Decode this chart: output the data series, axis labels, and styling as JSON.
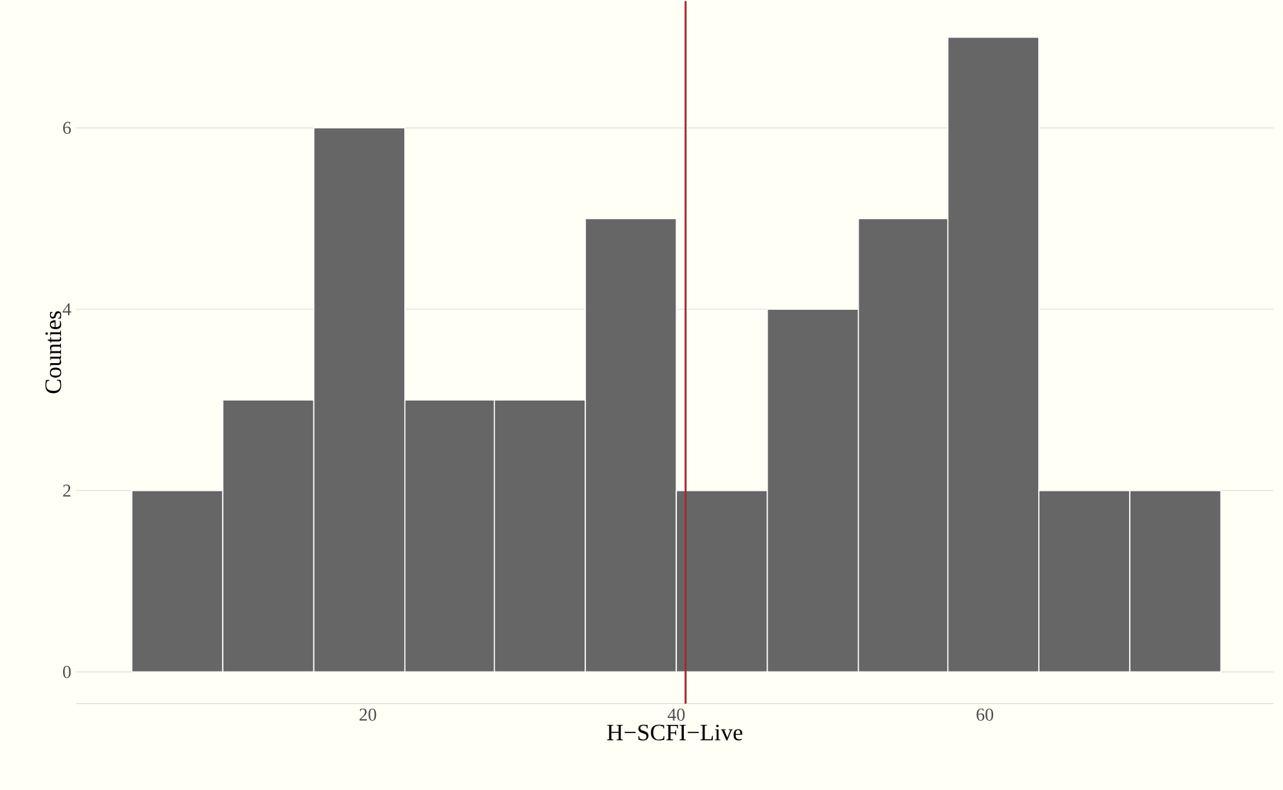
{
  "chart_data": {
    "type": "histogram",
    "xlabel": "H−SCFI−Live",
    "ylabel": "Counties",
    "bins": [
      4.7,
      10.6,
      16.5,
      22.4,
      28.2,
      34.1,
      40.0,
      45.9,
      51.8,
      57.6,
      63.5,
      69.4,
      75.3
    ],
    "values": [
      2,
      3,
      6,
      3,
      3,
      5,
      2,
      4,
      5,
      7,
      2,
      2
    ],
    "color": "#666666",
    "xlim": [
      1.1,
      78.7
    ],
    "ylim": [
      -0.35,
      7.4
    ],
    "xticks": [
      20,
      40,
      60
    ],
    "yticks": [
      0,
      2,
      4,
      6
    ],
    "grid": "y",
    "ref_lines": [
      {
        "axis": "x",
        "value": 40.6,
        "color": "#a52a2a"
      }
    ]
  }
}
